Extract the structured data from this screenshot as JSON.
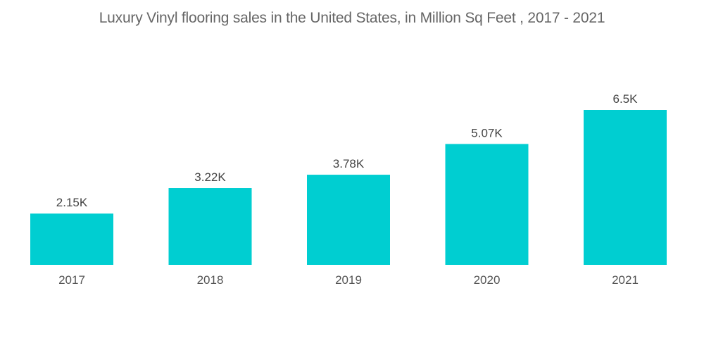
{
  "chart_data": {
    "type": "bar",
    "title": "Luxury Vinyl flooring sales in the United States, in Million Sq Feet , 2017 - 2021",
    "categories": [
      "2017",
      "2018",
      "2019",
      "2020",
      "2021"
    ],
    "values": [
      2150,
      3220,
      3780,
      5070,
      6500
    ],
    "data_labels": [
      "2.15K",
      "3.22K",
      "3.78K",
      "5.07K",
      "6.5K"
    ],
    "xlabel": "",
    "ylabel": "",
    "ylim": [
      0,
      6500
    ],
    "grid": false,
    "legend": "none",
    "bar_color": "#00CED1"
  }
}
